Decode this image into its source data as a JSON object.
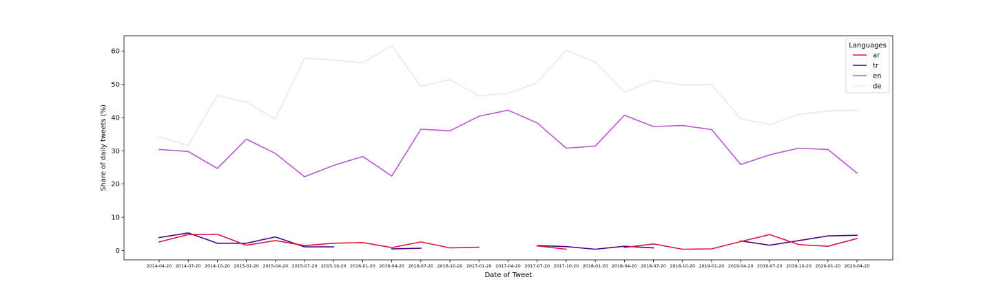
{
  "chart_data": {
    "type": "line",
    "xlabel": "Date of Tweet",
    "ylabel": "Share of daily tweets (%)",
    "ylim": [
      -2.8,
      64.6
    ],
    "yticks": [
      "0",
      "10",
      "20",
      "30",
      "40",
      "50",
      "60"
    ],
    "legend_title": "Languages",
    "legend_position": "top-right",
    "grid": false,
    "categories": [
      "2014-04-20",
      "2014-07-20",
      "2014-10-20",
      "2015-01-20",
      "2015-04-20",
      "2015-07-20",
      "2015-10-20",
      "2016-01-20",
      "2016-04-20",
      "2016-07-20",
      "2016-10-20",
      "2017-01-20",
      "2017-04-20",
      "2017-07-20",
      "2017-10-20",
      "2018-01-20",
      "2018-04-20",
      "2018-07-20",
      "2018-10-20",
      "2019-01-20",
      "2019-04-20",
      "2019-07-20",
      "2019-10-20",
      "2020-01-20",
      "2020-04-20"
    ],
    "series": [
      {
        "name": "ar",
        "color": "#dc143c",
        "values": [
          2.6,
          4.8,
          4.9,
          1.6,
          3.0,
          1.5,
          2.2,
          2.4,
          0.9,
          2.6,
          0.8,
          1.0,
          null,
          1.4,
          0.4,
          null,
          0.9,
          2.0,
          0.4,
          0.5,
          2.7,
          4.8,
          1.8,
          1.3,
          3.6
        ]
      },
      {
        "name": "tr",
        "color": "#4b0082",
        "values": [
          3.9,
          5.3,
          2.2,
          2.2,
          4.1,
          1.1,
          1.1,
          null,
          0.5,
          0.7,
          null,
          null,
          null,
          1.5,
          1.2,
          0.4,
          1.3,
          0.8,
          null,
          null,
          2.9,
          1.6,
          3.0,
          4.4,
          4.6
        ]
      },
      {
        "name": "en",
        "color": "#ba55d3",
        "values": [
          30.4,
          29.8,
          24.7,
          33.5,
          29.2,
          22.2,
          25.6,
          28.3,
          22.4,
          36.5,
          36.0,
          40.4,
          42.2,
          38.4,
          30.8,
          31.4,
          40.7,
          37.3,
          37.6,
          36.4,
          25.9,
          28.8,
          30.8,
          30.4,
          23.3
        ]
      },
      {
        "name": "de",
        "color": "#e6e6fa",
        "values": [
          34.2,
          31.6,
          46.7,
          44.6,
          39.6,
          57.9,
          57.3,
          56.5,
          61.6,
          49.4,
          51.4,
          46.5,
          47.3,
          50.5,
          60.3,
          56.6,
          47.7,
          51.1,
          49.8,
          49.9,
          39.6,
          37.9,
          40.9,
          42.0,
          42.2
        ]
      }
    ]
  }
}
